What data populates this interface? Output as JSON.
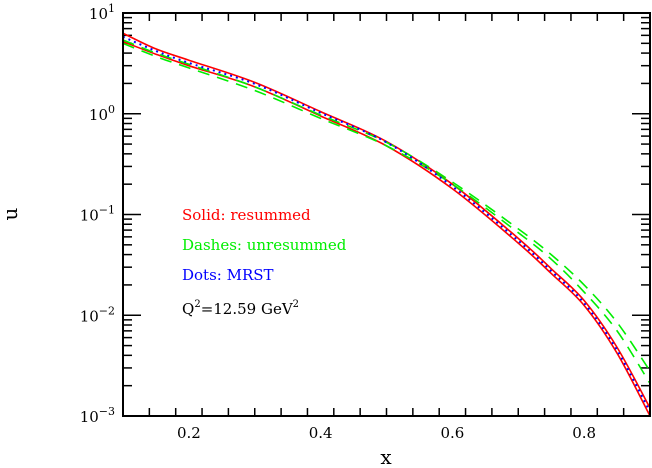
{
  "chart_data": {
    "type": "line",
    "xlabel": "x",
    "ylabel": "u",
    "xlim": [
      0.1,
      0.9
    ],
    "ylim": [
      0.001,
      10
    ],
    "yscale": "log",
    "grid": false,
    "x_ticks": [
      "0.2",
      "0.4",
      "0.6",
      "0.8"
    ],
    "y_ticks": [
      {
        "base": "10",
        "exp": "1"
      },
      {
        "base": "10",
        "exp": "0"
      },
      {
        "base": "10",
        "exp": "−1"
      },
      {
        "base": "10",
        "exp": "−2"
      },
      {
        "base": "10",
        "exp": "−3"
      }
    ],
    "annotations": {
      "solid": "Solid: resummed",
      "dashes": "Dashes: unresummed",
      "dots": "Dots: MRST",
      "q2_prefix": "Q",
      "q2_exp": "2",
      "q2_value": "=12.59 GeV",
      "q2_unit_exp": "2"
    },
    "x": [
      0.1,
      0.15,
      0.2,
      0.3,
      0.4,
      0.5,
      0.6,
      0.7,
      0.75,
      0.8,
      0.85,
      0.9
    ],
    "series": [
      {
        "style": "solid",
        "color": "#ff0000",
        "values": [
          6.3,
          4.4,
          3.4,
          2.05,
          1.05,
          0.53,
          0.2,
          0.058,
          0.029,
          0.014,
          0.0048,
          0.0012
        ]
      },
      {
        "style": "solid",
        "color": "#ff0000",
        "values": [
          5.2,
          3.9,
          3.0,
          1.85,
          0.95,
          0.48,
          0.18,
          0.052,
          0.026,
          0.0125,
          0.0042,
          0.001
        ]
      },
      {
        "style": "dashed",
        "color": "#00ee00",
        "values": [
          5.4,
          4.0,
          3.1,
          1.85,
          0.97,
          0.52,
          0.21,
          0.072,
          0.04,
          0.02,
          0.0085,
          0.0028
        ]
      },
      {
        "style": "dashed",
        "color": "#00ee00",
        "values": [
          5.0,
          3.7,
          2.85,
          1.7,
          0.9,
          0.48,
          0.2,
          0.066,
          0.036,
          0.017,
          0.007,
          0.0021
        ]
      },
      {
        "style": "dotted",
        "color": "#0000ff",
        "values": [
          5.8,
          4.2,
          3.2,
          1.98,
          1.02,
          0.52,
          0.19,
          0.055,
          0.0275,
          0.0132,
          0.0045,
          0.0011
        ]
      }
    ]
  }
}
